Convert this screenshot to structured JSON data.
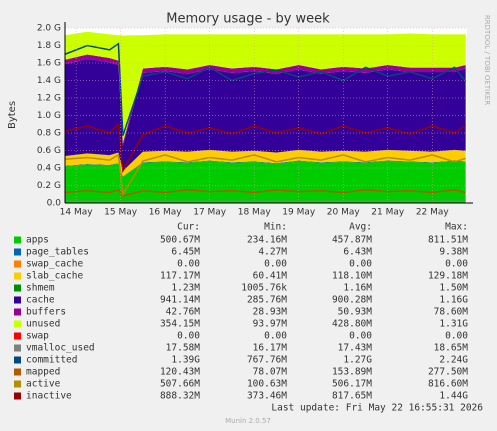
{
  "chart_data": {
    "type": "area",
    "title": "Memory usage - by week",
    "ylabel": "Bytes",
    "side_text": "RRDTOOL / TOBI OETIKER",
    "x": [
      13.75,
      14.25,
      14.75,
      14.95,
      15.05,
      15.5,
      16,
      16.5,
      17,
      17.5,
      18,
      18.5,
      19,
      19.5,
      20,
      20.5,
      21,
      21.5,
      22,
      22.5,
      22.75
    ],
    "xlim": [
      13.75,
      22.78
    ],
    "xticks": [
      {
        "value": 14,
        "label": "14 May"
      },
      {
        "value": 15,
        "label": "15 May"
      },
      {
        "value": 16,
        "label": "16 May"
      },
      {
        "value": 17,
        "label": "17 May"
      },
      {
        "value": 18,
        "label": "18 May"
      },
      {
        "value": 19,
        "label": "19 May"
      },
      {
        "value": 20,
        "label": "20 May"
      },
      {
        "value": 21,
        "label": "21 May"
      },
      {
        "value": 22,
        "label": "22 May"
      }
    ],
    "ylim": [
      0,
      2
    ],
    "yticks": [
      {
        "value": 0,
        "label": "0.0"
      },
      {
        "value": 0.2,
        "label": "0.2 G"
      },
      {
        "value": 0.4,
        "label": "0.4 G"
      },
      {
        "value": 0.6,
        "label": "0.6 G"
      },
      {
        "value": 0.8,
        "label": "0.8 G"
      },
      {
        "value": 1.0,
        "label": "1.0 G"
      },
      {
        "value": 1.2,
        "label": "1.2 G"
      },
      {
        "value": 1.4,
        "label": "1.4 G"
      },
      {
        "value": 1.6,
        "label": "1.6 G"
      },
      {
        "value": 1.8,
        "label": "1.8 G"
      },
      {
        "value": 2.0,
        "label": "2.0 G"
      }
    ],
    "grid": true,
    "stats_headers": [
      "Cur:",
      "Min:",
      "Avg:",
      "Max:"
    ],
    "series": [
      {
        "name": "apps",
        "color": "#00cc00",
        "style": "area",
        "values": [
          0.42,
          0.44,
          0.43,
          0.45,
          0.3,
          0.46,
          0.47,
          0.46,
          0.48,
          0.46,
          0.47,
          0.45,
          0.48,
          0.46,
          0.47,
          0.46,
          0.48,
          0.47,
          0.46,
          0.48,
          0.47
        ],
        "stats": [
          "500.67M",
          "234.16M",
          "457.87M",
          "811.51M"
        ]
      },
      {
        "name": "page_tables",
        "color": "#0066b3",
        "style": "area",
        "values": [
          0.006,
          0.006,
          0.006,
          0.006,
          0.004,
          0.006,
          0.006,
          0.006,
          0.006,
          0.006,
          0.006,
          0.006,
          0.006,
          0.006,
          0.006,
          0.006,
          0.006,
          0.006,
          0.006,
          0.006,
          0.006
        ],
        "stats": [
          "6.45M",
          "4.27M",
          "6.43M",
          "9.38M"
        ]
      },
      {
        "name": "swap_cache",
        "color": "#ff8000",
        "style": "area",
        "values": [
          0,
          0,
          0,
          0,
          0,
          0,
          0,
          0,
          0,
          0,
          0,
          0,
          0,
          0,
          0,
          0,
          0,
          0,
          0,
          0,
          0
        ],
        "stats": [
          "0.00",
          "0.00",
          "0.00",
          "0.00"
        ]
      },
      {
        "name": "slab_cache",
        "color": "#ffcc00",
        "style": "area",
        "values": [
          0.11,
          0.12,
          0.11,
          0.12,
          0.06,
          0.12,
          0.12,
          0.12,
          0.12,
          0.12,
          0.12,
          0.12,
          0.12,
          0.12,
          0.12,
          0.12,
          0.12,
          0.12,
          0.12,
          0.12,
          0.12
        ],
        "stats": [
          "117.17M",
          "60.41M",
          "118.10M",
          "129.18M"
        ]
      },
      {
        "name": "shmem",
        "color": "#008f00",
        "style": "area",
        "values": [
          0.0012,
          0.0012,
          0.0012,
          0.0012,
          0.001,
          0.0012,
          0.0012,
          0.0012,
          0.0012,
          0.0012,
          0.0012,
          0.0012,
          0.0012,
          0.0012,
          0.0012,
          0.0012,
          0.0012,
          0.0012,
          0.0012,
          0.0012,
          0.0012
        ],
        "stats": [
          "1.23M",
          "1005.76k",
          "1.16M",
          "1.50M"
        ]
      },
      {
        "name": "cache",
        "color": "#330099",
        "style": "area",
        "values": [
          1.05,
          1.08,
          1.06,
          1.0,
          0.29,
          0.9,
          0.91,
          0.89,
          0.92,
          0.9,
          0.91,
          0.9,
          0.92,
          0.89,
          0.91,
          0.9,
          0.92,
          0.9,
          0.91,
          0.89,
          0.94
        ],
        "stats": [
          "941.14M",
          "285.76M",
          "900.28M",
          "1.16G"
        ]
      },
      {
        "name": "buffers",
        "color": "#990099",
        "style": "area",
        "values": [
          0.05,
          0.05,
          0.05,
          0.05,
          0.03,
          0.05,
          0.05,
          0.05,
          0.05,
          0.05,
          0.05,
          0.05,
          0.05,
          0.05,
          0.05,
          0.05,
          0.05,
          0.05,
          0.05,
          0.05,
          0.04
        ],
        "stats": [
          "42.76M",
          "28.93M",
          "50.93M",
          "78.60M"
        ]
      },
      {
        "name": "unused",
        "color": "#ccff00",
        "style": "area",
        "values": [
          0.28,
          0.26,
          0.27,
          0.29,
          1.23,
          0.38,
          0.37,
          0.4,
          0.35,
          0.39,
          0.37,
          0.4,
          0.35,
          0.4,
          0.37,
          0.39,
          0.35,
          0.39,
          0.38,
          0.38,
          0.35
        ],
        "stats": [
          "354.15M",
          "93.97M",
          "428.80M",
          "1.31G"
        ]
      },
      {
        "name": "swap",
        "color": "#ff0000",
        "style": "area",
        "values": [
          0,
          0,
          0,
          0,
          0,
          0,
          0,
          0,
          0,
          0,
          0,
          0,
          0,
          0,
          0,
          0,
          0,
          0,
          0,
          0,
          0
        ],
        "stats": [
          "0.00",
          "0.00",
          "0.00",
          "0.00"
        ]
      },
      {
        "name": "vmalloc_used",
        "color": "#808080",
        "style": "line",
        "values": [
          0.018,
          0.018,
          0.018,
          0.018,
          0.016,
          0.018,
          0.018,
          0.018,
          0.018,
          0.018,
          0.018,
          0.018,
          0.018,
          0.018,
          0.018,
          0.018,
          0.018,
          0.018,
          0.018,
          0.018,
          0.018
        ],
        "stats": [
          "17.58M",
          "16.17M",
          "17.43M",
          "18.65M"
        ]
      },
      {
        "name": "committed",
        "color": "#00487d",
        "style": "line",
        "values": [
          1.7,
          1.8,
          1.75,
          1.82,
          0.77,
          1.45,
          1.5,
          1.42,
          1.55,
          1.4,
          1.48,
          1.52,
          1.44,
          1.5,
          1.4,
          1.55,
          1.45,
          1.5,
          1.42,
          1.55,
          1.39
        ],
        "stats": [
          "1.39G",
          "767.76M",
          "1.27G",
          "2.24G"
        ]
      },
      {
        "name": "mapped",
        "color": "#b35a00",
        "style": "line",
        "values": [
          0.12,
          0.14,
          0.12,
          0.15,
          0.08,
          0.14,
          0.12,
          0.15,
          0.13,
          0.14,
          0.12,
          0.15,
          0.13,
          0.14,
          0.12,
          0.15,
          0.13,
          0.14,
          0.12,
          0.15,
          0.12
        ],
        "stats": [
          "120.43M",
          "78.07M",
          "153.89M",
          "277.50M"
        ]
      },
      {
        "name": "active",
        "color": "#b38f00",
        "style": "line",
        "values": [
          0.5,
          0.52,
          0.49,
          0.55,
          0.1,
          0.48,
          0.55,
          0.47,
          0.52,
          0.49,
          0.55,
          0.47,
          0.52,
          0.49,
          0.55,
          0.47,
          0.52,
          0.49,
          0.55,
          0.47,
          0.51
        ],
        "stats": [
          "507.66M",
          "100.63M",
          "506.17M",
          "816.60M"
        ]
      },
      {
        "name": "inactive",
        "color": "#990000",
        "style": "line",
        "values": [
          0.82,
          0.88,
          0.8,
          0.9,
          0.37,
          0.78,
          0.88,
          0.8,
          0.86,
          0.79,
          0.88,
          0.8,
          0.86,
          0.79,
          0.88,
          0.8,
          0.86,
          0.79,
          0.88,
          0.8,
          0.89
        ],
        "stats": [
          "888.32M",
          "373.46M",
          "817.65M",
          "1.44G"
        ]
      }
    ],
    "footer": "Last update: Fri May 22 16:55:31 2026",
    "version": "Munin 2.0.57"
  }
}
